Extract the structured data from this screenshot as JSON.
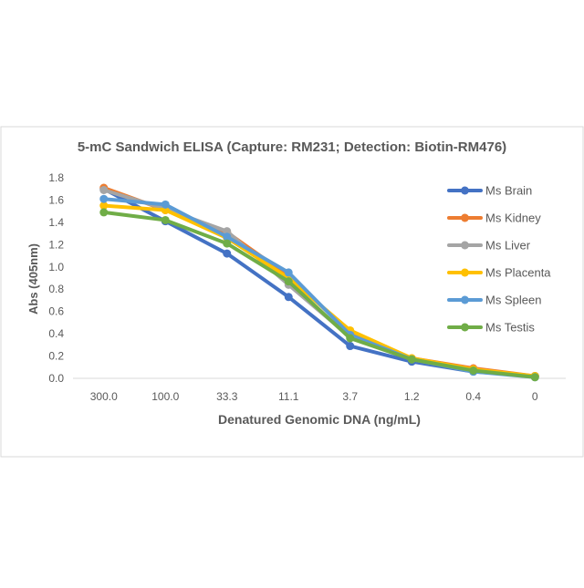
{
  "chart_data": {
    "type": "line",
    "title": "5-mC Sandwich ELISA (Capture: RM231; Detection: Biotin-RM476)",
    "xlabel": "Denatured Genomic DNA (ng/mL)",
    "ylabel": "Abs (405nm)",
    "categories": [
      "300.0",
      "100.0",
      "33.3",
      "11.1",
      "3.7",
      "1.2",
      "0.4",
      "0"
    ],
    "ylim": [
      0,
      1.8
    ],
    "yticks": [
      "0.0",
      "0.2",
      "0.4",
      "0.6",
      "0.8",
      "1.0",
      "1.2",
      "1.4",
      "1.6",
      "1.8"
    ],
    "grid": false,
    "legend_position": "right",
    "series": [
      {
        "name": "Ms Brain",
        "color": "#4472C4",
        "values": [
          1.7,
          1.41,
          1.12,
          0.73,
          0.29,
          0.15,
          0.06,
          0.02
        ]
      },
      {
        "name": "Ms Kidney",
        "color": "#ED7D31",
        "values": [
          1.71,
          1.51,
          1.31,
          0.92,
          0.41,
          0.18,
          0.09,
          0.02
        ]
      },
      {
        "name": "Ms Liver",
        "color": "#A5A5A5",
        "values": [
          1.69,
          1.52,
          1.32,
          0.84,
          0.37,
          0.17,
          0.07,
          0.02
        ]
      },
      {
        "name": "Ms Placenta",
        "color": "#FFC000",
        "values": [
          1.55,
          1.51,
          1.26,
          0.9,
          0.43,
          0.18,
          0.08,
          0.02
        ]
      },
      {
        "name": "Ms Spleen",
        "color": "#5B9BD5",
        "values": [
          1.61,
          1.56,
          1.27,
          0.95,
          0.39,
          0.17,
          0.06,
          0.01
        ]
      },
      {
        "name": "Ms Testis",
        "color": "#70AD47",
        "values": [
          1.49,
          1.42,
          1.21,
          0.87,
          0.36,
          0.17,
          0.07,
          0.01
        ]
      }
    ]
  }
}
